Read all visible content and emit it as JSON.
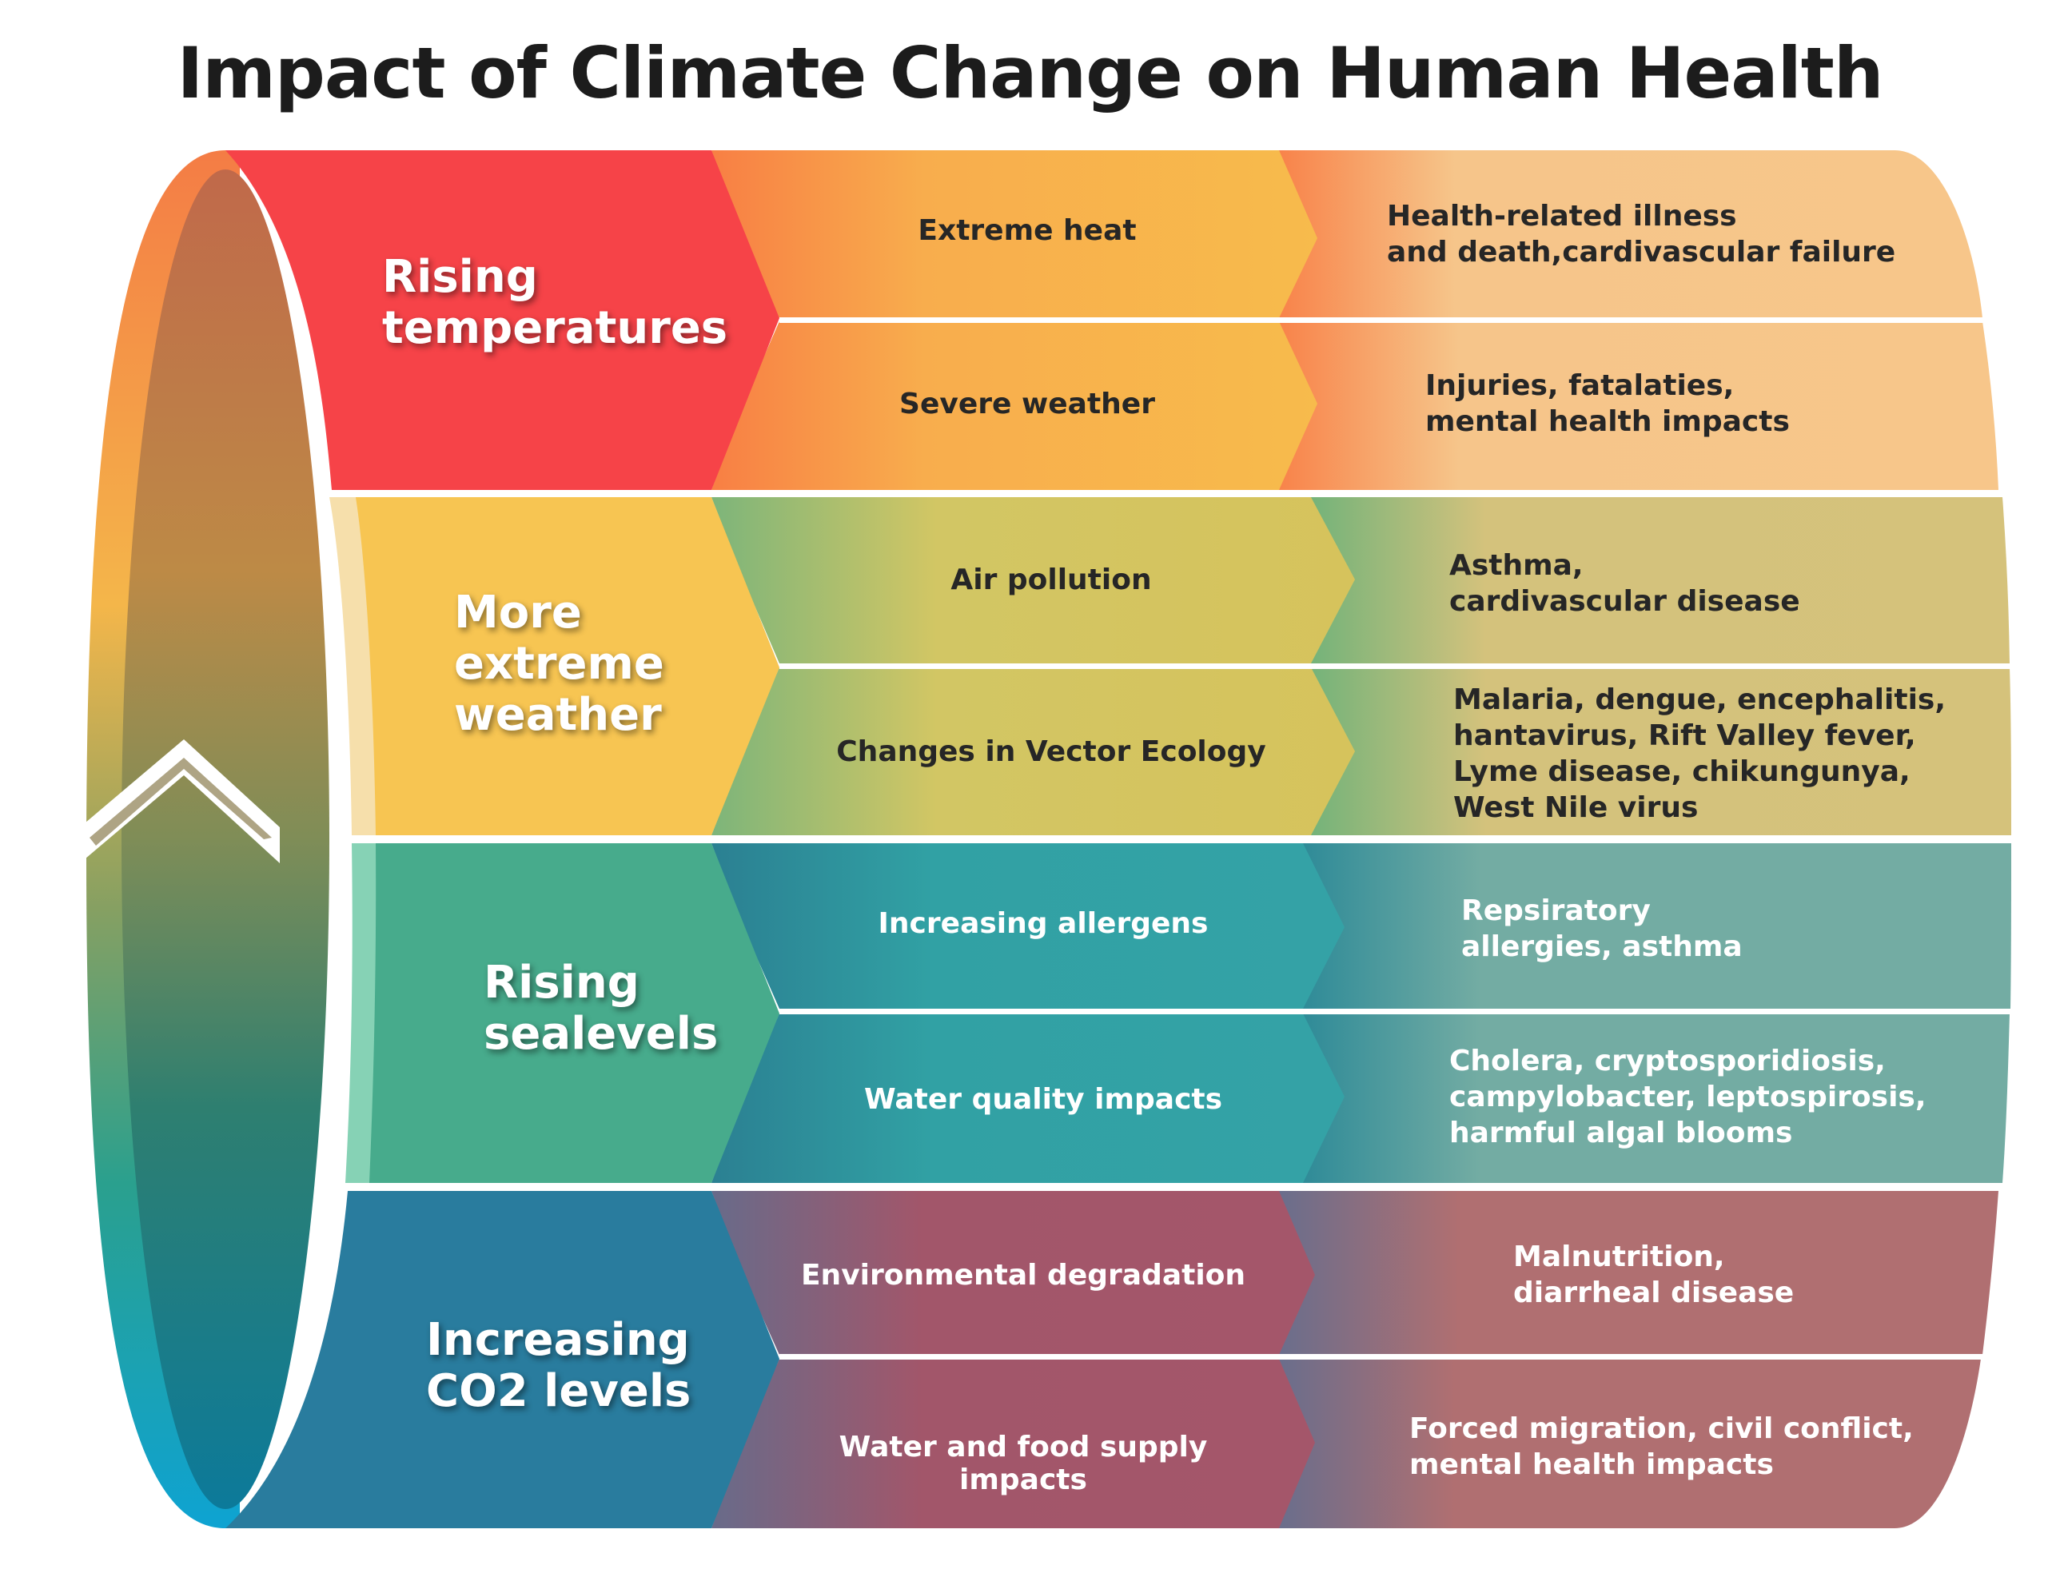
{
  "title": "Impact of Climate Change on Human Health",
  "colors": {
    "red": "#f64348",
    "yellow": "#f7c552",
    "green": "#47ab8c",
    "blue": "#297c9e",
    "peach": "#f5c68a",
    "khaki": "#d5c27b",
    "teal": "#73aca3",
    "rose": "#b06f71"
  },
  "categories": [
    {
      "label": "Rising\ntemperatures",
      "items": [
        {
          "cause": "Extreme heat",
          "effect": "Health-related illness\nand death,cardivascular failure"
        },
        {
          "cause": "Severe weather",
          "effect": "Injuries, fatalaties,\nmental health impacts"
        }
      ]
    },
    {
      "label": "More\nextreme\nweather",
      "items": [
        {
          "cause": "Air pollution",
          "effect": "Asthma,\ncardivascular disease"
        },
        {
          "cause": "Changes in Vector Ecology",
          "effect": "Malaria, dengue, encephalitis,\nhantavirus, Rift Valley fever,\nLyme disease, chikungunya,\nWest Nile virus"
        }
      ]
    },
    {
      "label": "Rising\nsealevels",
      "items": [
        {
          "cause": "Increasing allergens",
          "effect": "Repsiratory\nallergies, asthma"
        },
        {
          "cause": "Water quality impacts",
          "effect": "Cholera, cryptosporidiosis,\ncampylobacter, leptospirosis,\nharmful algal blooms"
        }
      ]
    },
    {
      "label": "Increasing\nCO2 levels",
      "items": [
        {
          "cause": "Environmental degradation",
          "effect": "Malnutrition,\ndiarrheal disease"
        },
        {
          "cause": "Water and food supply impacts",
          "effect": "Forced migration, civil conflict,\nmental health impacts"
        }
      ]
    }
  ]
}
